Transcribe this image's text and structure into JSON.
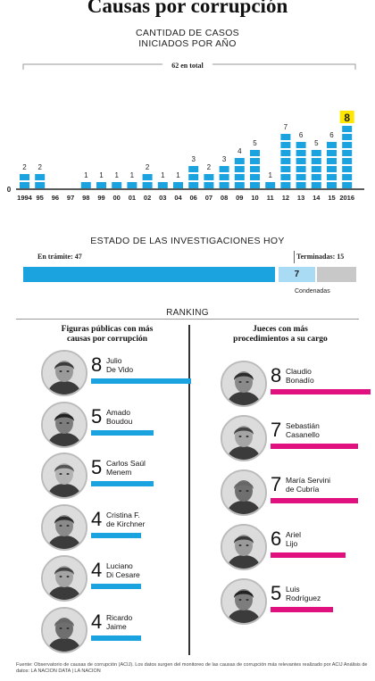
{
  "title": "Causas por corrupción",
  "colors": {
    "blue": "#1aa3df",
    "light_blue": "#a9dcf4",
    "grey": "#c8c8c8",
    "magenta": "#e0117f",
    "yellow": "#ffe600"
  },
  "chart_data": [
    {
      "type": "bar",
      "title": "CANTIDAD DE CASOS INICIADOS POR AÑO",
      "title_lines": [
        "CANTIDAD DE CASOS",
        "INICIADOS POR AÑO"
      ],
      "total_label": "62 en total",
      "zero_label": "0",
      "categories": [
        "1994",
        "95",
        "96",
        "97",
        "98",
        "99",
        "00",
        "01",
        "02",
        "03",
        "04",
        "06",
        "07",
        "08",
        "09",
        "10",
        "11",
        "12",
        "13",
        "14",
        "15",
        "2016"
      ],
      "values": [
        2,
        2,
        0,
        0,
        1,
        1,
        1,
        1,
        2,
        1,
        1,
        3,
        2,
        3,
        4,
        5,
        1,
        7,
        6,
        5,
        6,
        8
      ],
      "highlight_last": true
    },
    {
      "type": "bar",
      "title": "ESTADO DE LAS INVESTIGACIONES HOY",
      "categories": [
        "En trámite",
        "Terminadas"
      ],
      "values": [
        47,
        15
      ],
      "labels": {
        "en_tramite": "En trámite: 47",
        "terminadas": "Terminadas: 15",
        "condenadas_value": "7",
        "condenadas": "Condenadas"
      },
      "breakdown": {
        "condenadas": 7
      }
    }
  ],
  "ranking": {
    "title": "RANKING",
    "public_figures": {
      "heading_lines": [
        "Figuras públicas con más",
        "causas por corrupción"
      ],
      "people": [
        {
          "count": "8",
          "value": 8,
          "name_lines": [
            "Julio",
            "De Vido"
          ]
        },
        {
          "count": "5",
          "value": 5,
          "name_lines": [
            "Amado",
            "Boudou"
          ]
        },
        {
          "count": "5",
          "value": 5,
          "name_lines": [
            "Carlos Saúl",
            "Menem"
          ]
        },
        {
          "count": "4",
          "value": 4,
          "name_lines": [
            "Cristina F.",
            "de Kirchner"
          ]
        },
        {
          "count": "4",
          "value": 4,
          "name_lines": [
            "Luciano",
            "Di Cesare"
          ]
        },
        {
          "count": "4",
          "value": 4,
          "name_lines": [
            "Ricardo",
            "Jaime"
          ]
        }
      ]
    },
    "judges": {
      "heading_lines": [
        "Jueces con más",
        "procedimientos a su cargo"
      ],
      "people": [
        {
          "count": "8",
          "value": 8,
          "name_lines": [
            "Claudio",
            "Bonadío"
          ]
        },
        {
          "count": "7",
          "value": 7,
          "name_lines": [
            "Sebastián",
            "Casanello"
          ]
        },
        {
          "count": "7",
          "value": 7,
          "name_lines": [
            "María Servini",
            "de Cubría"
          ]
        },
        {
          "count": "6",
          "value": 6,
          "name_lines": [
            "Ariel",
            "Lijo"
          ]
        },
        {
          "count": "5",
          "value": 5,
          "name_lines": [
            "Luis",
            "Rodríguez"
          ]
        }
      ]
    }
  },
  "footnote": "Fuente: Observatorio de causas de corrupción (ACIJ). Los datos surgen del monitoreo de las causas de corrupción más relevantes realizado por ACIJ Análisis de datos: LA NACION DATA | LA NACION"
}
